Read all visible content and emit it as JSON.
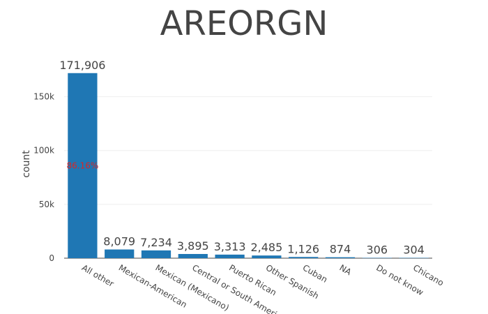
{
  "chart_data": {
    "type": "bar",
    "title": "AREORGN",
    "xlabel": "",
    "ylabel": "count",
    "ylim": [
      0,
      175000
    ],
    "yticks": [
      0,
      50000,
      100000,
      150000
    ],
    "ytick_labels": [
      "0",
      "50k",
      "100k",
      "150k"
    ],
    "grid": true,
    "categories": [
      "All other",
      "Mexican-American",
      "Mexican (Mexicano)",
      "Central or South American",
      "Puerto Rican",
      "Other Spanish",
      "Cuban",
      "NA",
      "Do not know",
      "Chicano"
    ],
    "values": [
      171906,
      8079,
      7234,
      3895,
      3313,
      2485,
      1126,
      874,
      306,
      304
    ],
    "value_labels": [
      "171,906",
      "8,079",
      "7,234",
      "3,895",
      "3,313",
      "2,485",
      "1,126",
      "874",
      "306",
      "304"
    ],
    "annotations": [
      {
        "category": "All other",
        "text": "86.16%"
      }
    ],
    "colors": {
      "bar": "#1f77b4",
      "annotation": "#d62728"
    }
  }
}
